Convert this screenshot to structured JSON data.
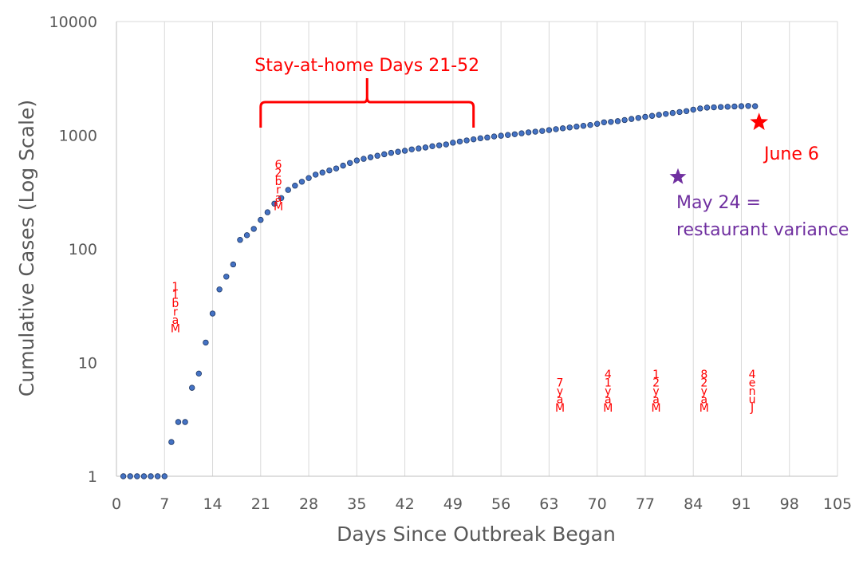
{
  "chart_data": {
    "type": "scatter",
    "xlabel": "Days Since Outbreak Began",
    "ylabel": "Cumulative Cases (Log Scale)",
    "y_scale": "log",
    "xlim": [
      0,
      105
    ],
    "ylim": [
      1,
      10000
    ],
    "x_ticks": [
      "0",
      "7",
      "14",
      "21",
      "28",
      "35",
      "42",
      "49",
      "56",
      "63",
      "70",
      "77",
      "84",
      "91",
      "98",
      "105"
    ],
    "y_ticks": [
      "1",
      "10",
      "100",
      "1000",
      "10000"
    ],
    "grid": "vertical",
    "legend": "none",
    "series_color": "#4472c4",
    "points": [
      [
        1,
        1
      ],
      [
        2,
        1
      ],
      [
        3,
        1
      ],
      [
        4,
        1
      ],
      [
        5,
        1
      ],
      [
        6,
        1
      ],
      [
        7,
        1
      ],
      [
        8,
        2
      ],
      [
        9,
        3
      ],
      [
        10,
        3
      ],
      [
        11,
        6
      ],
      [
        12,
        8
      ],
      [
        13,
        15
      ],
      [
        14,
        27
      ],
      [
        15,
        44
      ],
      [
        16,
        57
      ],
      [
        17,
        73
      ],
      [
        18,
        120
      ],
      [
        19,
        132
      ],
      [
        20,
        150
      ],
      [
        21,
        180
      ],
      [
        22,
        210
      ],
      [
        23,
        250
      ],
      [
        24,
        280
      ],
      [
        25,
        330
      ],
      [
        26,
        360
      ],
      [
        27,
        390
      ],
      [
        28,
        420
      ],
      [
        29,
        450
      ],
      [
        30,
        470
      ],
      [
        31,
        490
      ],
      [
        32,
        510
      ],
      [
        33,
        540
      ],
      [
        34,
        570
      ],
      [
        35,
        600
      ],
      [
        36,
        620
      ],
      [
        37,
        640
      ],
      [
        38,
        660
      ],
      [
        39,
        680
      ],
      [
        40,
        700
      ],
      [
        41,
        715
      ],
      [
        42,
        730
      ],
      [
        43,
        750
      ],
      [
        44,
        765
      ],
      [
        45,
        780
      ],
      [
        46,
        800
      ],
      [
        47,
        815
      ],
      [
        48,
        830
      ],
      [
        49,
        860
      ],
      [
        50,
        880
      ],
      [
        51,
        900
      ],
      [
        52,
        920
      ],
      [
        53,
        940
      ],
      [
        54,
        955
      ],
      [
        55,
        975
      ],
      [
        56,
        990
      ],
      [
        57,
        1005
      ],
      [
        58,
        1020
      ],
      [
        59,
        1040
      ],
      [
        60,
        1060
      ],
      [
        61,
        1075
      ],
      [
        62,
        1090
      ],
      [
        63,
        1110
      ],
      [
        64,
        1130
      ],
      [
        65,
        1150
      ],
      [
        66,
        1170
      ],
      [
        67,
        1190
      ],
      [
        68,
        1210
      ],
      [
        69,
        1230
      ],
      [
        70,
        1260
      ],
      [
        71,
        1300
      ],
      [
        72,
        1310
      ],
      [
        73,
        1330
      ],
      [
        74,
        1360
      ],
      [
        75,
        1390
      ],
      [
        76,
        1420
      ],
      [
        77,
        1450
      ],
      [
        78,
        1480
      ],
      [
        79,
        1510
      ],
      [
        80,
        1540
      ],
      [
        81,
        1570
      ],
      [
        82,
        1600
      ],
      [
        83,
        1630
      ],
      [
        84,
        1680
      ],
      [
        85,
        1720
      ],
      [
        86,
        1750
      ],
      [
        87,
        1760
      ],
      [
        88,
        1770
      ],
      [
        89,
        1780
      ],
      [
        90,
        1790
      ],
      [
        91,
        1800
      ],
      [
        92,
        1810
      ],
      [
        93,
        1800
      ]
    ],
    "annotations": {
      "stay_home": {
        "label": "Stay-at-home Days 21-52",
        "x_start": 21,
        "x_end": 52
      },
      "june6": {
        "label": "June 6",
        "x": 93,
        "y": 1300,
        "color": "#ff0000"
      },
      "may24": {
        "line1": "May 24 =",
        "line2": "restaurant variance",
        "x": 82,
        "y": 430,
        "color": "#7030a0"
      },
      "vertical_labels": [
        {
          "text": "Mar 11",
          "chars": [
            "1",
            "1",
            "b",
            "r",
            "a",
            "M"
          ],
          "x": 8,
          "y": 20
        },
        {
          "text": "Mar 26",
          "chars": [
            "6",
            "2",
            "b",
            "r",
            "a",
            "M"
          ],
          "x": 23,
          "y": 1300
        },
        {
          "text": "May 7",
          "chars": [
            "7",
            "y",
            "a",
            "M"
          ],
          "x": 64,
          "y": 4
        },
        {
          "text": "May 14",
          "chars": [
            "4",
            "1",
            "y",
            "a",
            "M"
          ],
          "x": 71,
          "y": 4
        },
        {
          "text": "May 21",
          "chars": [
            "1",
            "2",
            "y",
            "a",
            "M"
          ],
          "x": 78,
          "y": 4
        },
        {
          "text": "May 28",
          "chars": [
            "8",
            "2",
            "y",
            "a",
            "M"
          ],
          "x": 85,
          "y": 4
        },
        {
          "text": "June 4",
          "chars": [
            "4",
            "e",
            "n",
            "u",
            "J"
          ],
          "x": 92,
          "y": 4
        }
      ]
    }
  }
}
